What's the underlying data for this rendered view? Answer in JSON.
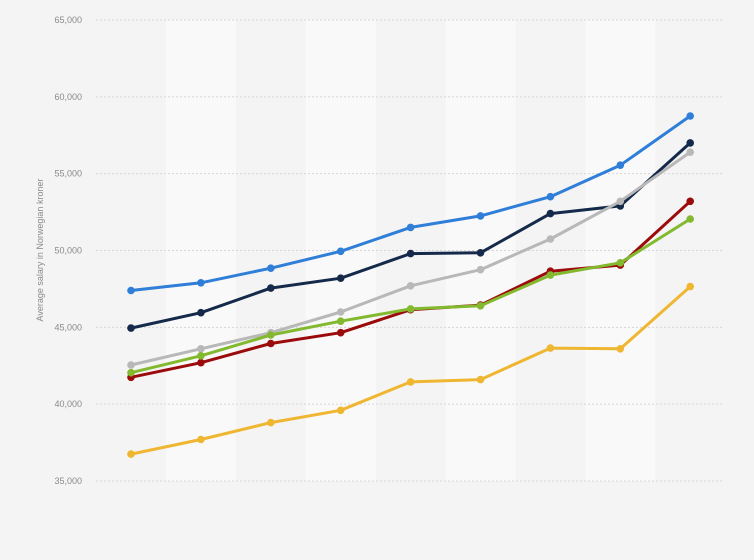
{
  "chart_data": {
    "type": "line",
    "title": "",
    "xlabel": "",
    "ylabel": "Average salary in Norwegian kroner",
    "ylim": [
      35000,
      65000
    ],
    "yticks": [
      35000,
      40000,
      45000,
      50000,
      55000,
      60000,
      65000
    ],
    "ytick_labels": [
      "35,000",
      "40,000",
      "45,000",
      "50,000",
      "55,000",
      "60,000",
      "65,000"
    ],
    "grid": true,
    "legend": "none",
    "point_count": 9,
    "background": "#f4f4f5",
    "band_color": "#f9f9f9",
    "series": [
      {
        "color": "#2f7ed8",
        "values": [
          47400,
          47900,
          48850,
          49950,
          51500,
          52250,
          53500,
          55550,
          58750
        ]
      },
      {
        "color": "#15294a",
        "values": [
          44950,
          45950,
          47550,
          48200,
          49800,
          49850,
          52400,
          52900,
          57000
        ]
      },
      {
        "color": "#b8b8b8",
        "values": [
          42550,
          43600,
          44650,
          46000,
          47700,
          48750,
          50750,
          53200,
          56400
        ]
      },
      {
        "color": "#9c0b0b",
        "values": [
          41750,
          42700,
          43950,
          44650,
          46150,
          46450,
          48650,
          49050,
          53200
        ]
      },
      {
        "color": "#82b92e",
        "values": [
          42050,
          43150,
          44500,
          45400,
          46200,
          46400,
          48400,
          49200,
          52050
        ]
      },
      {
        "color": "#efb631",
        "values": [
          36750,
          37700,
          38800,
          39600,
          41450,
          41600,
          43650,
          43600,
          47650
        ]
      }
    ]
  }
}
